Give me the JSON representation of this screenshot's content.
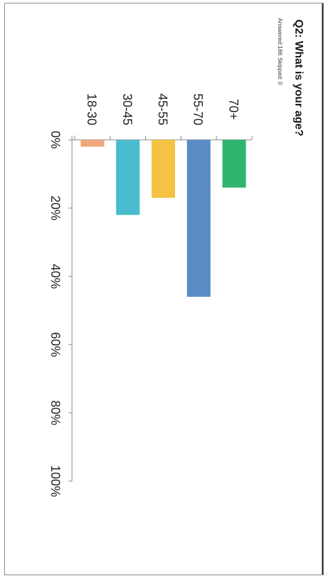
{
  "survey": {
    "question": "Q2: What is your age?",
    "answered_label": "Answered:",
    "answered": "186",
    "skipped_label": "Skipped:",
    "skipped": "0"
  },
  "chart_data": {
    "type": "bar",
    "orientation": "horizontal",
    "title": "Q2: What is your age?",
    "categories": [
      "70+",
      "55-70",
      "45-55",
      "30-45",
      "18-30"
    ],
    "values": [
      14,
      46,
      17,
      22,
      2
    ],
    "unit": "%",
    "xlim": [
      0,
      100
    ],
    "ticks": [
      "0%",
      "20%",
      "40%",
      "60%",
      "80%",
      "100%"
    ],
    "tick_values": [
      0,
      20,
      40,
      60,
      80,
      100
    ],
    "colors": [
      "#2fb56e",
      "#5b8cc6",
      "#f5c343",
      "#49bccf",
      "#f0a77a"
    ],
    "grid": false,
    "legend": "none",
    "image_rotation": "rotated 90 degrees clockwise"
  }
}
